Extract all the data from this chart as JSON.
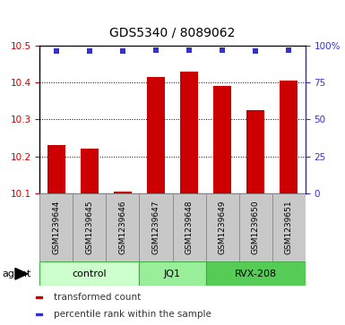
{
  "title": "GDS5340 / 8089062",
  "samples": [
    "GSM1239644",
    "GSM1239645",
    "GSM1239646",
    "GSM1239647",
    "GSM1239648",
    "GSM1239649",
    "GSM1239650",
    "GSM1239651"
  ],
  "bar_values": [
    10.23,
    10.22,
    10.105,
    10.415,
    10.43,
    10.39,
    10.325,
    10.405
  ],
  "percentile_values": [
    96,
    96,
    96,
    97,
    97,
    97,
    96,
    97
  ],
  "bar_color": "#cc0000",
  "dot_color": "#3333cc",
  "ylim_left": [
    10.1,
    10.5
  ],
  "ylim_right": [
    0,
    100
  ],
  "yticks_left": [
    10.1,
    10.2,
    10.3,
    10.4,
    10.5
  ],
  "yticks_right": [
    0,
    25,
    50,
    75,
    100
  ],
  "groups": [
    {
      "label": "control",
      "indices": [
        0,
        1,
        2
      ],
      "color": "#ccffcc"
    },
    {
      "label": "JQ1",
      "indices": [
        3,
        4
      ],
      "color": "#99ee99"
    },
    {
      "label": "RVX-208",
      "indices": [
        5,
        6,
        7
      ],
      "color": "#55cc55"
    }
  ],
  "agent_label": "agent",
  "legend_items": [
    {
      "color": "#cc0000",
      "label": "transformed count"
    },
    {
      "color": "#3333cc",
      "label": "percentile rank within the sample"
    }
  ],
  "bar_width": 0.55,
  "grid_color": "#000000",
  "background_color": "#ffffff",
  "plot_bg_color": "#ffffff",
  "sample_box_color": "#c8c8c8",
  "sample_box_edge": "#888888",
  "right_axis_color": "#3333cc",
  "left_axis_color": "#cc0000"
}
